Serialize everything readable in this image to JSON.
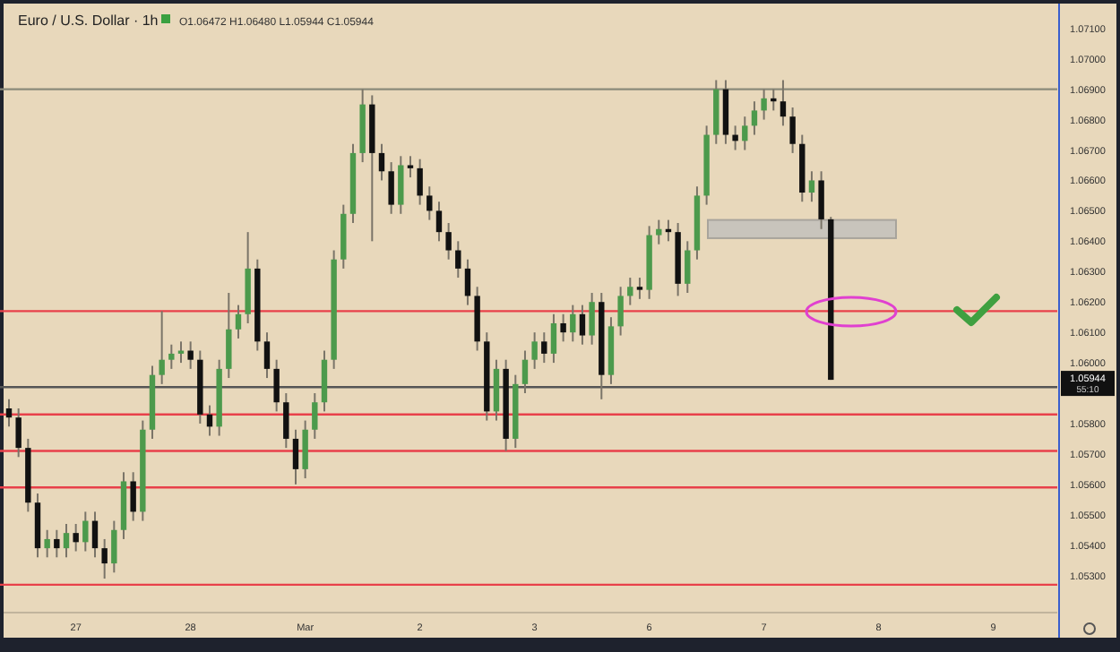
{
  "chart_data": {
    "type": "candlestick",
    "title": "Euro / U.S. Dollar · 1h",
    "annotations": [
      "O1.06472 H1.06480 L1.05944 C1.05944",
      "1.05944",
      "55:10"
    ],
    "categories": [
      null,
      null,
      null,
      null,
      null,
      null,
      null,
      "27",
      null,
      null,
      null,
      null,
      null,
      null,
      null,
      null,
      null,
      null,
      null,
      "28",
      null,
      null,
      null,
      null,
      null,
      null,
      null,
      null,
      null,
      null,
      null,
      "Mar",
      null,
      null,
      null,
      null,
      null,
      null,
      null,
      null,
      null,
      null,
      null,
      "2",
      null,
      null,
      null,
      null,
      null,
      null,
      null,
      null,
      null,
      null,
      null,
      "3",
      null,
      null,
      null,
      null,
      null,
      null,
      null,
      null,
      null,
      null,
      null,
      "6",
      null,
      null,
      null,
      null,
      null,
      null,
      null,
      null,
      null,
      null,
      null,
      "7",
      null,
      null,
      null,
      null,
      null,
      null,
      null,
      null,
      null,
      null,
      null,
      "8",
      null,
      null,
      null,
      null,
      null,
      null,
      null,
      null,
      null,
      null,
      null,
      "9",
      null,
      null,
      null,
      null
    ],
    "ohlc": [
      [
        1.0585,
        1.0588,
        1.0579,
        1.0582
      ],
      [
        1.0582,
        1.0585,
        1.0569,
        1.0572
      ],
      [
        1.0572,
        1.0575,
        1.0551,
        1.0554
      ],
      [
        1.0554,
        1.0557,
        1.0536,
        1.0539
      ],
      [
        1.0539,
        1.0545,
        1.0536,
        1.0542
      ],
      [
        1.0542,
        1.0545,
        1.0536,
        1.0539
      ],
      [
        1.0539,
        1.0547,
        1.0536,
        1.0544
      ],
      [
        1.0544,
        1.0547,
        1.0538,
        1.0541
      ],
      [
        1.0541,
        1.0551,
        1.0538,
        1.0548
      ],
      [
        1.0548,
        1.0551,
        1.0536,
        1.0539
      ],
      [
        1.0539,
        1.0542,
        1.0529,
        1.0534
      ],
      [
        1.0534,
        1.0548,
        1.0531,
        1.0545
      ],
      [
        1.0545,
        1.0564,
        1.0542,
        1.0561
      ],
      [
        1.0561,
        1.0564,
        1.0548,
        1.0551
      ],
      [
        1.0551,
        1.0581,
        1.0548,
        1.0578
      ],
      [
        1.0578,
        1.0599,
        1.0575,
        1.0596
      ],
      [
        1.0596,
        1.0617,
        1.0593,
        1.0601
      ],
      [
        1.0601,
        1.0606,
        1.0598,
        1.0603
      ],
      [
        1.0603,
        1.0607,
        1.06,
        1.0604
      ],
      [
        1.0604,
        1.0607,
        1.0598,
        1.0601
      ],
      [
        1.0601,
        1.0604,
        1.058,
        1.0583
      ],
      [
        1.0583,
        1.0586,
        1.0576,
        1.0579
      ],
      [
        1.0579,
        1.0601,
        1.0576,
        1.0598
      ],
      [
        1.0598,
        1.0623,
        1.0595,
        1.0611
      ],
      [
        1.0611,
        1.0619,
        1.0608,
        1.0616
      ],
      [
        1.0616,
        1.0643,
        1.0613,
        1.0631
      ],
      [
        1.0631,
        1.0634,
        1.0604,
        1.0607
      ],
      [
        1.0607,
        1.061,
        1.0595,
        1.0598
      ],
      [
        1.0598,
        1.0601,
        1.0584,
        1.0587
      ],
      [
        1.0587,
        1.059,
        1.0572,
        1.0575
      ],
      [
        1.0575,
        1.0578,
        1.056,
        1.0565
      ],
      [
        1.0565,
        1.0581,
        1.0562,
        1.0578
      ],
      [
        1.0578,
        1.059,
        1.0575,
        1.0587
      ],
      [
        1.0587,
        1.0604,
        1.0584,
        1.0601
      ],
      [
        1.0601,
        1.0637,
        1.0598,
        1.0634
      ],
      [
        1.0634,
        1.0652,
        1.0631,
        1.0649
      ],
      [
        1.0649,
        1.0672,
        1.0646,
        1.0669
      ],
      [
        1.0669,
        1.069,
        1.0666,
        1.0685
      ],
      [
        1.0685,
        1.0688,
        1.064,
        1.0669
      ],
      [
        1.0669,
        1.0672,
        1.066,
        1.0663
      ],
      [
        1.0663,
        1.0666,
        1.0649,
        1.0652
      ],
      [
        1.0652,
        1.0668,
        1.0649,
        1.0665
      ],
      [
        1.0665,
        1.0668,
        1.0661,
        1.0664
      ],
      [
        1.0664,
        1.0667,
        1.0652,
        1.0655
      ],
      [
        1.0655,
        1.0658,
        1.0647,
        1.065
      ],
      [
        1.065,
        1.0653,
        1.064,
        1.0643
      ],
      [
        1.0643,
        1.0646,
        1.0634,
        1.0637
      ],
      [
        1.0637,
        1.064,
        1.0628,
        1.0631
      ],
      [
        1.0631,
        1.0634,
        1.0619,
        1.0622
      ],
      [
        1.0622,
        1.0625,
        1.0604,
        1.0607
      ],
      [
        1.0607,
        1.061,
        1.0581,
        1.0584
      ],
      [
        1.0584,
        1.0601,
        1.0581,
        1.0598
      ],
      [
        1.0598,
        1.0601,
        1.0571,
        1.0575
      ],
      [
        1.0575,
        1.0596,
        1.0572,
        1.0593
      ],
      [
        1.0593,
        1.0604,
        1.059,
        1.0601
      ],
      [
        1.0601,
        1.061,
        1.0598,
        1.0607
      ],
      [
        1.0607,
        1.061,
        1.06,
        1.0603
      ],
      [
        1.0603,
        1.0616,
        1.06,
        1.0613
      ],
      [
        1.0613,
        1.0616,
        1.0607,
        1.061
      ],
      [
        1.061,
        1.0619,
        1.0607,
        1.0616
      ],
      [
        1.0616,
        1.0619,
        1.0606,
        1.0609
      ],
      [
        1.0609,
        1.0623,
        1.0606,
        1.062
      ],
      [
        1.062,
        1.0623,
        1.0588,
        1.0596
      ],
      [
        1.0596,
        1.0615,
        1.0593,
        1.0612
      ],
      [
        1.0612,
        1.0625,
        1.0609,
        1.0622
      ],
      [
        1.0622,
        1.0628,
        1.0619,
        1.0625
      ],
      [
        1.0625,
        1.0628,
        1.0621,
        1.0624
      ],
      [
        1.0624,
        1.0645,
        1.0621,
        1.0642
      ],
      [
        1.0642,
        1.0647,
        1.0639,
        1.0644
      ],
      [
        1.0644,
        1.0647,
        1.064,
        1.0643
      ],
      [
        1.0643,
        1.0646,
        1.0622,
        1.0626
      ],
      [
        1.0626,
        1.064,
        1.0623,
        1.0637
      ],
      [
        1.0637,
        1.0658,
        1.0634,
        1.0655
      ],
      [
        1.0655,
        1.0678,
        1.0652,
        1.0675
      ],
      [
        1.0675,
        1.0693,
        1.0672,
        1.069
      ],
      [
        1.069,
        1.0693,
        1.0672,
        1.0675
      ],
      [
        1.0675,
        1.0678,
        1.067,
        1.0673
      ],
      [
        1.0673,
        1.0681,
        1.067,
        1.0678
      ],
      [
        1.0678,
        1.0686,
        1.0675,
        1.0683
      ],
      [
        1.0683,
        1.069,
        1.068,
        1.0687
      ],
      [
        1.0687,
        1.069,
        1.0683,
        1.0686
      ],
      [
        1.0686,
        1.0693,
        1.0678,
        1.0681
      ],
      [
        1.0681,
        1.0684,
        1.0669,
        1.0672
      ],
      [
        1.0672,
        1.0675,
        1.0653,
        1.0656
      ],
      [
        1.0656,
        1.0663,
        1.0653,
        1.066
      ],
      [
        1.066,
        1.0663,
        1.0644,
        1.06472
      ],
      [
        1.06472,
        1.0648,
        1.05944,
        1.05944
      ],
      null,
      null,
      null,
      null,
      null,
      null,
      null,
      null,
      null,
      null,
      null,
      null,
      null,
      null,
      null,
      null,
      null,
      null,
      null,
      null,
      null
    ],
    "ylim": [
      1.0519,
      1.0717
    ],
    "yticks": [
      {
        "value": 1.053,
        "label": "1.05300"
      },
      {
        "value": 1.054,
        "label": "1.05400"
      },
      {
        "value": 1.055,
        "label": "1.05500"
      },
      {
        "value": 1.056,
        "label": "1.05600"
      },
      {
        "value": 1.057,
        "label": "1.05700"
      },
      {
        "value": 1.058,
        "label": "1.05800"
      },
      {
        "value": 1.06,
        "label": "1.06000"
      },
      {
        "value": 1.061,
        "label": "1.06100"
      },
      {
        "value": 1.062,
        "label": "1.06200"
      },
      {
        "value": 1.063,
        "label": "1.06300"
      },
      {
        "value": 1.064,
        "label": "1.06400"
      },
      {
        "value": 1.065,
        "label": "1.06500"
      },
      {
        "value": 1.066,
        "label": "1.06600"
      },
      {
        "value": 1.067,
        "label": "1.06700"
      },
      {
        "value": 1.068,
        "label": "1.06800"
      },
      {
        "value": 1.069,
        "label": "1.06900"
      },
      {
        "value": 1.07,
        "label": "1.07000"
      },
      {
        "value": 1.071,
        "label": "1.07100"
      }
    ],
    "ref_lines": [
      {
        "axis": "y",
        "value": 1.0527,
        "color": "#e8404a"
      },
      {
        "axis": "y",
        "value": 1.0559,
        "color": "#e8404a"
      },
      {
        "axis": "y",
        "value": 1.0571,
        "color": "#e8404a"
      },
      {
        "axis": "y",
        "value": 1.0583,
        "color": "#e8404a"
      },
      {
        "axis": "y",
        "value": 1.0592,
        "color": "#555555"
      },
      {
        "axis": "y",
        "value": 1.0617,
        "color": "#e8404a"
      },
      {
        "axis": "y",
        "value": 1.069,
        "color": "#8a8a7a"
      }
    ],
    "bands": [
      {
        "axis": "y",
        "from": 1.0641,
        "to": 1.0647,
        "color": "#c8c4bc"
      }
    ]
  }
}
